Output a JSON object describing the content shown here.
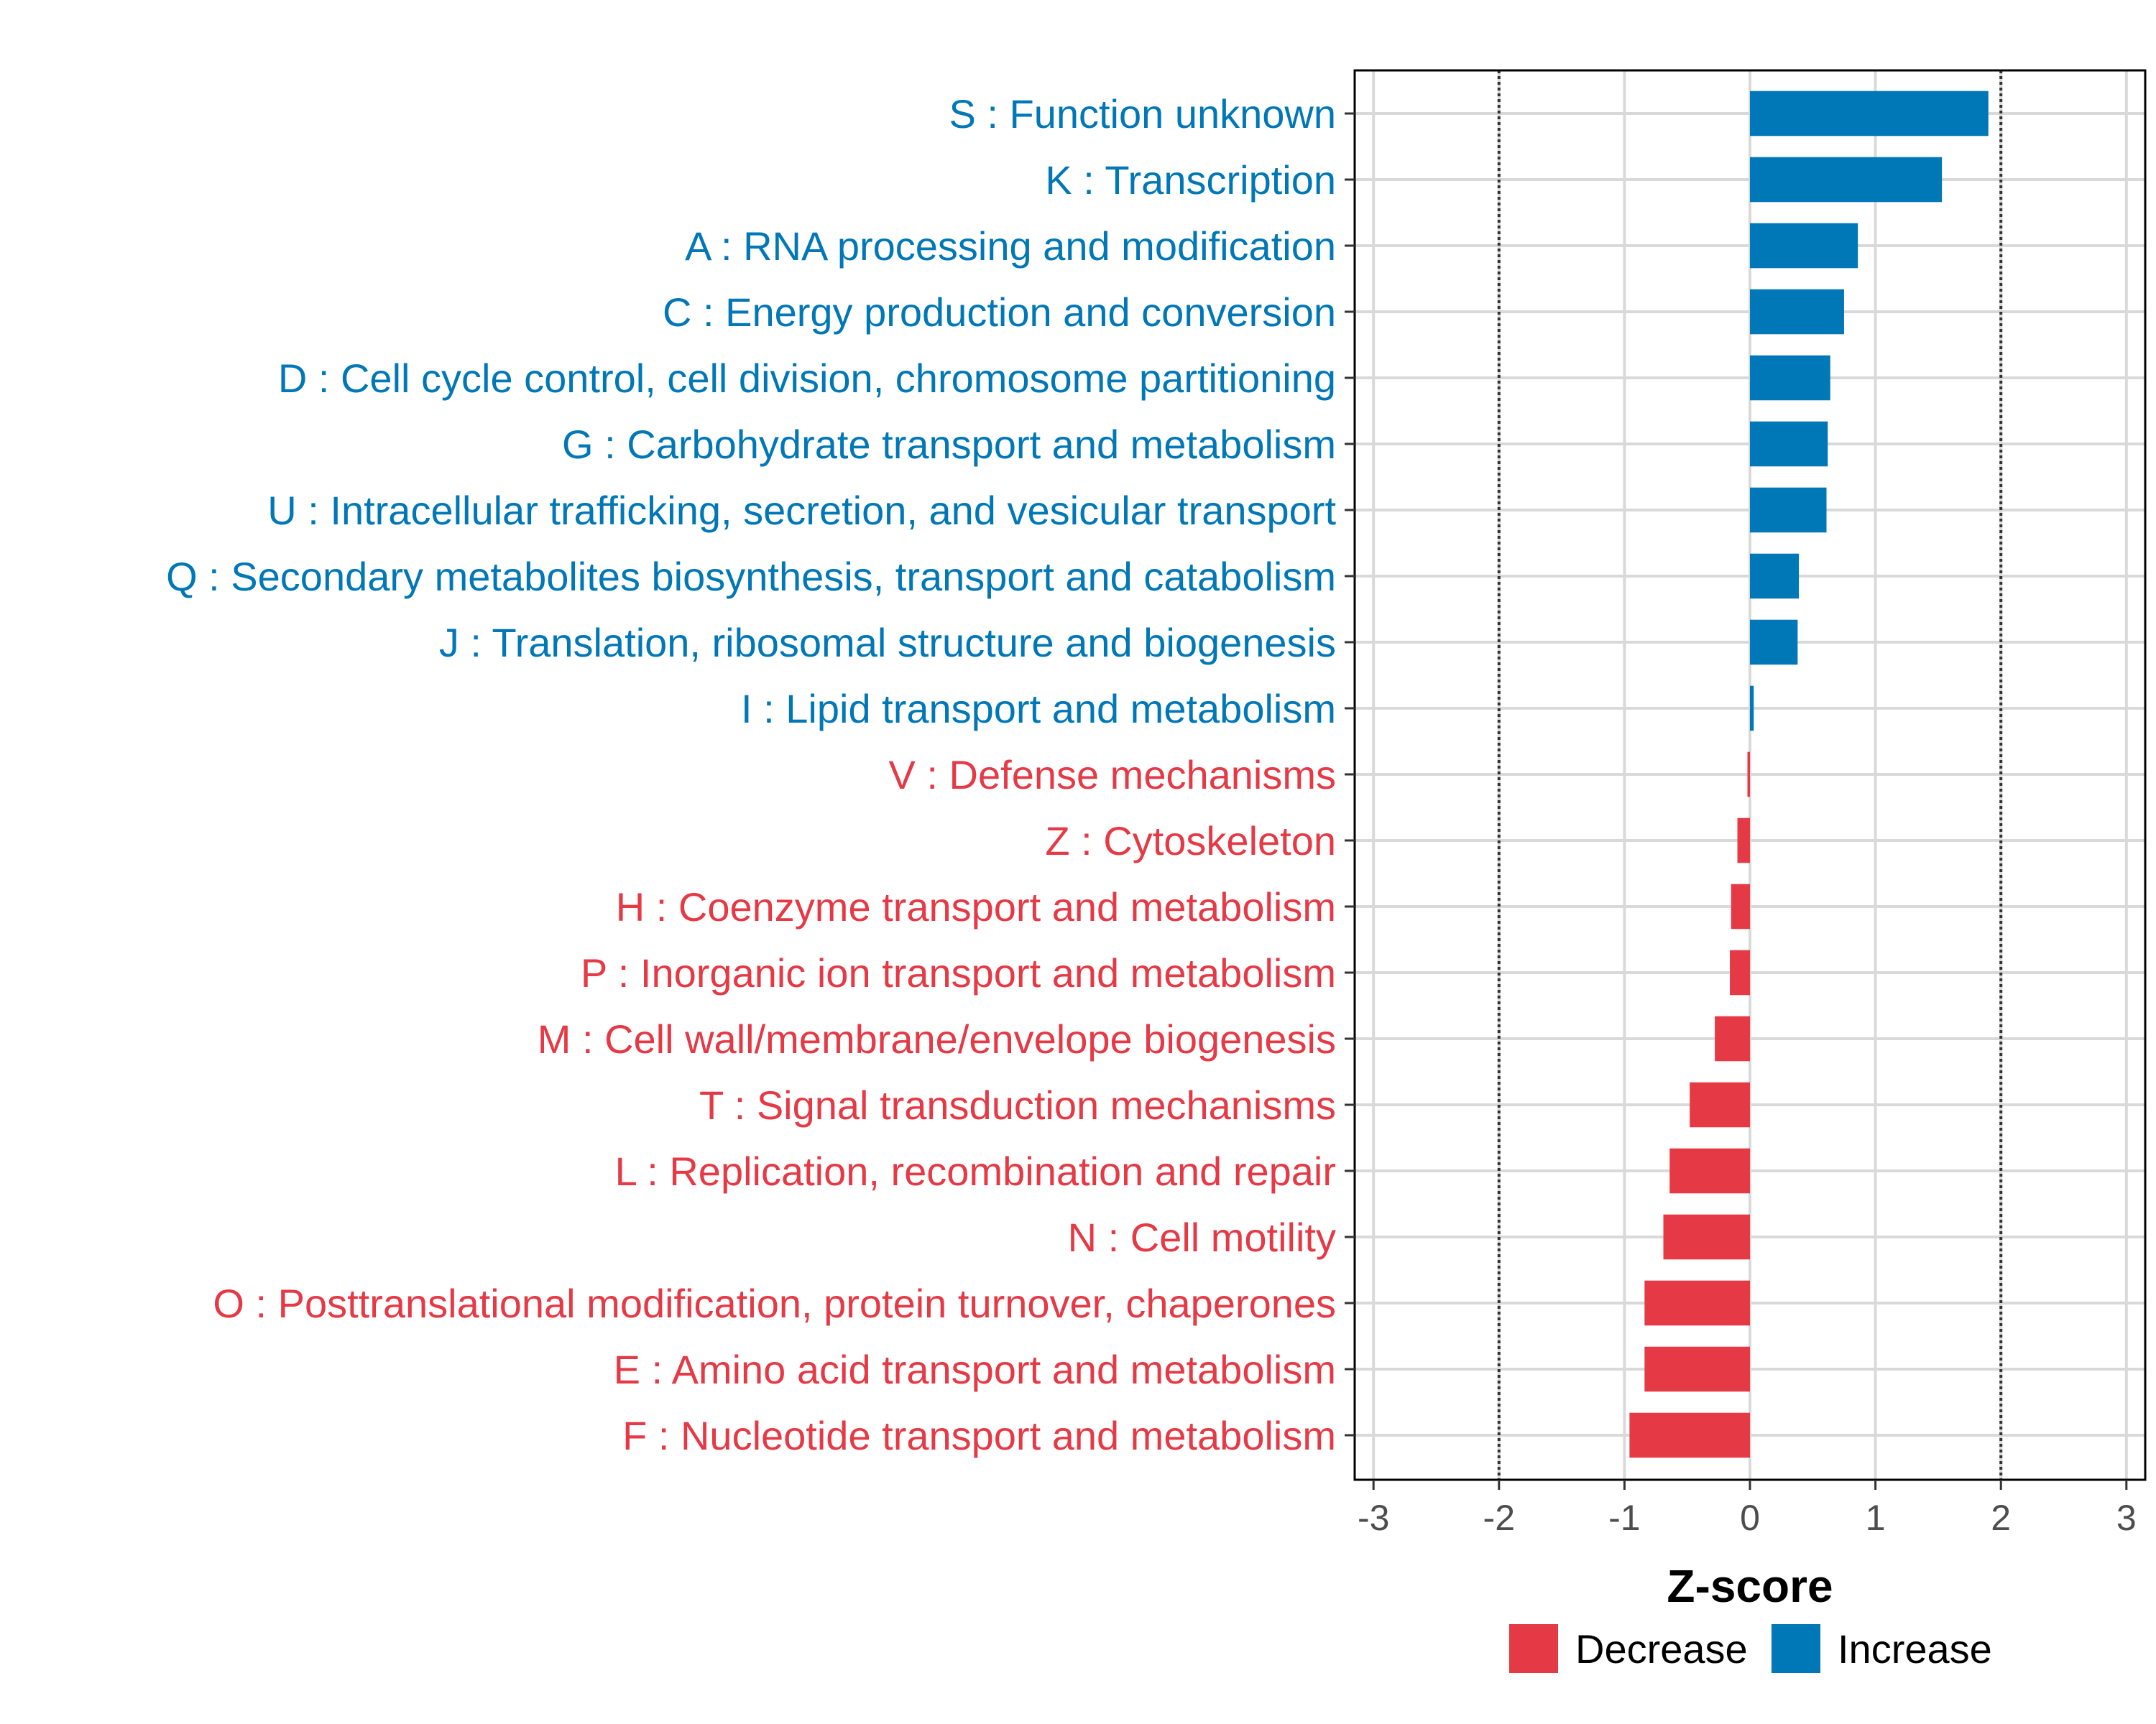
{
  "chart_data": {
    "type": "bar",
    "orientation": "horizontal",
    "title": "",
    "xlabel": "Z-score",
    "ylabel": "",
    "xlim": [
      -3.15,
      3.15
    ],
    "xticks": [
      -3,
      -2,
      -1,
      0,
      1,
      2,
      3
    ],
    "xtick_labels": [
      "-3",
      "-2",
      "-1",
      "0",
      "1",
      "2",
      "3"
    ],
    "reference_lines": [
      -2,
      2
    ],
    "grid": true,
    "legend_position": "bottom",
    "colors": {
      "Decrease": "#E63946",
      "Increase": "#0077B6"
    },
    "legend": [
      {
        "name": "Decrease",
        "color": "#E63946"
      },
      {
        "name": "Increase",
        "color": "#0077B6"
      }
    ],
    "categories": [
      "S : Function unknown",
      "K : Transcription",
      "A : RNA processing and modification",
      "C : Energy production and conversion",
      "D : Cell cycle control, cell division, chromosome partitioning",
      "G : Carbohydrate transport and metabolism",
      "U : Intracellular trafficking, secretion, and vesicular transport",
      "Q : Secondary metabolites biosynthesis, transport and catabolism",
      "J : Translation, ribosomal structure and biogenesis",
      "I : Lipid transport and metabolism",
      "V : Defense mechanisms",
      "Z : Cytoskeleton",
      "H : Coenzyme transport and metabolism",
      "P : Inorganic ion transport and metabolism",
      "M : Cell wall/membrane/envelope biogenesis",
      "T : Signal transduction mechanisms",
      "L : Replication, recombination and repair",
      "N : Cell motility",
      "O : Posttranslational modification, protein turnover, chaperones",
      "E : Amino acid transport and metabolism",
      "F : Nucleotide transport and metabolism"
    ],
    "values": [
      1.9,
      1.53,
      0.86,
      0.75,
      0.64,
      0.62,
      0.61,
      0.39,
      0.38,
      0.03,
      -0.02,
      -0.1,
      -0.15,
      -0.16,
      -0.28,
      -0.48,
      -0.64,
      -0.69,
      -0.84,
      -0.84,
      -0.96
    ],
    "groups": [
      "Increase",
      "Increase",
      "Increase",
      "Increase",
      "Increase",
      "Increase",
      "Increase",
      "Increase",
      "Increase",
      "Increase",
      "Decrease",
      "Decrease",
      "Decrease",
      "Decrease",
      "Decrease",
      "Decrease",
      "Decrease",
      "Decrease",
      "Decrease",
      "Decrease",
      "Decrease"
    ]
  }
}
